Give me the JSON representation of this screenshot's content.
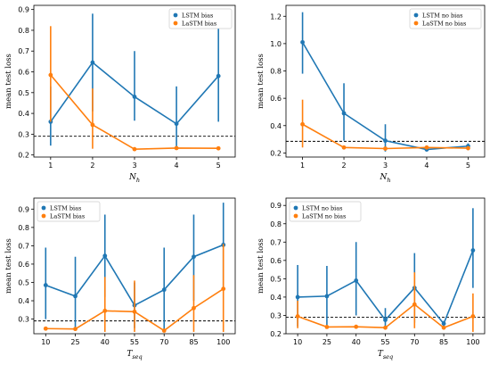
{
  "colors": {
    "lstm": "#1f77b4",
    "lastm": "#ff7f0e"
  },
  "chart_data": [
    {
      "type": "line",
      "ylabel": "mean test loss",
      "xlabel_main": "N",
      "xlabel_sub": "h",
      "x": [
        1,
        2,
        3,
        4,
        5
      ],
      "ylim": [
        0.19,
        0.92
      ],
      "yticks": [
        0.2,
        0.3,
        0.4,
        0.5,
        0.6,
        0.7,
        0.8,
        0.9
      ],
      "xlim": [
        0.6,
        5.4
      ],
      "reference_line": 0.29,
      "legend": "top-right",
      "series": [
        {
          "name": "LSTM bias",
          "color_key": "lstm",
          "values": [
            0.36,
            0.645,
            0.48,
            0.35,
            0.58
          ],
          "err_low": [
            0.245,
            0.41,
            0.365,
            0.24,
            0.36
          ],
          "err_high": [
            0.53,
            0.88,
            0.7,
            0.53,
            0.81
          ]
        },
        {
          "name": "LaSTM bias",
          "color_key": "lastm",
          "values": [
            0.585,
            0.345,
            0.228,
            0.233,
            0.232
          ],
          "err_low": [
            0.36,
            0.23,
            0.228,
            0.233,
            0.232
          ],
          "err_high": [
            0.82,
            0.52,
            0.228,
            0.233,
            0.232
          ]
        }
      ]
    },
    {
      "type": "line",
      "ylabel": "mean test loss",
      "xlabel_main": "N",
      "xlabel_sub": "h",
      "x": [
        1,
        2,
        3,
        4,
        5
      ],
      "ylim": [
        0.17,
        1.28
      ],
      "yticks": [
        0.2,
        0.4,
        0.6,
        0.8,
        1.0,
        1.2
      ],
      "xlim": [
        0.6,
        5.4
      ],
      "reference_line": 0.285,
      "legend": "top-right",
      "series": [
        {
          "name": "LSTM no bias",
          "color_key": "lstm",
          "values": [
            1.01,
            0.49,
            0.29,
            0.225,
            0.25
          ],
          "err_low": [
            0.78,
            0.29,
            0.21,
            0.225,
            0.22
          ],
          "err_high": [
            1.23,
            0.71,
            0.41,
            0.225,
            0.27
          ]
        },
        {
          "name": "LaSTM no bias",
          "color_key": "lastm",
          "values": [
            0.41,
            0.24,
            0.232,
            0.24,
            0.235
          ],
          "err_low": [
            0.24,
            0.24,
            0.232,
            0.24,
            0.235
          ],
          "err_high": [
            0.59,
            0.24,
            0.232,
            0.24,
            0.235
          ]
        }
      ]
    },
    {
      "type": "line",
      "ylabel": "mean test loss",
      "xlabel_main": "T",
      "xlabel_sub": "seq",
      "x": [
        10,
        25,
        40,
        55,
        70,
        85,
        100
      ],
      "ylim": [
        0.22,
        0.96
      ],
      "yticks": [
        0.3,
        0.4,
        0.5,
        0.6,
        0.7,
        0.8,
        0.9
      ],
      "xlim": [
        4,
        106
      ],
      "reference_line": 0.29,
      "legend": "top-left",
      "series": [
        {
          "name": "LSTM bias",
          "color_key": "lstm",
          "values": [
            0.485,
            0.425,
            0.645,
            0.375,
            0.46,
            0.64,
            0.705
          ],
          "err_low": [
            0.3,
            0.25,
            0.42,
            0.25,
            0.24,
            0.4,
            0.48
          ],
          "err_high": [
            0.69,
            0.64,
            0.87,
            0.5,
            0.69,
            0.87,
            0.935
          ]
        },
        {
          "name": "LaSTM bias",
          "color_key": "lastm",
          "values": [
            0.248,
            0.246,
            0.345,
            0.34,
            0.237,
            0.36,
            0.465
          ],
          "err_low": [
            0.248,
            0.246,
            0.23,
            0.23,
            0.237,
            0.23,
            0.23
          ],
          "err_high": [
            0.248,
            0.246,
            0.53,
            0.51,
            0.237,
            0.54,
            0.71
          ]
        }
      ]
    },
    {
      "type": "line",
      "ylabel": "mean test loss",
      "xlabel_main": "T",
      "xlabel_sub": "seq",
      "x": [
        10,
        25,
        40,
        55,
        70,
        85,
        100
      ],
      "ylim": [
        0.2,
        0.94
      ],
      "yticks": [
        0.2,
        0.3,
        0.4,
        0.5,
        0.6,
        0.7,
        0.8,
        0.9
      ],
      "xlim": [
        4,
        106
      ],
      "reference_line": 0.29,
      "legend": "top-left",
      "series": [
        {
          "name": "LSTM no bias",
          "color_key": "lstm",
          "values": [
            0.4,
            0.405,
            0.49,
            0.275,
            0.45,
            0.255,
            0.655
          ],
          "err_low": [
            0.24,
            0.24,
            0.3,
            0.23,
            0.26,
            0.245,
            0.45
          ],
          "err_high": [
            0.575,
            0.57,
            0.7,
            0.34,
            0.64,
            0.27,
            0.885
          ]
        },
        {
          "name": "LaSTM no bias",
          "color_key": "lastm",
          "values": [
            0.295,
            0.237,
            0.238,
            0.233,
            0.36,
            0.233,
            0.295
          ],
          "err_low": [
            0.23,
            0.237,
            0.238,
            0.233,
            0.23,
            0.233,
            0.21
          ],
          "err_high": [
            0.38,
            0.237,
            0.238,
            0.233,
            0.535,
            0.233,
            0.42
          ]
        }
      ]
    }
  ]
}
